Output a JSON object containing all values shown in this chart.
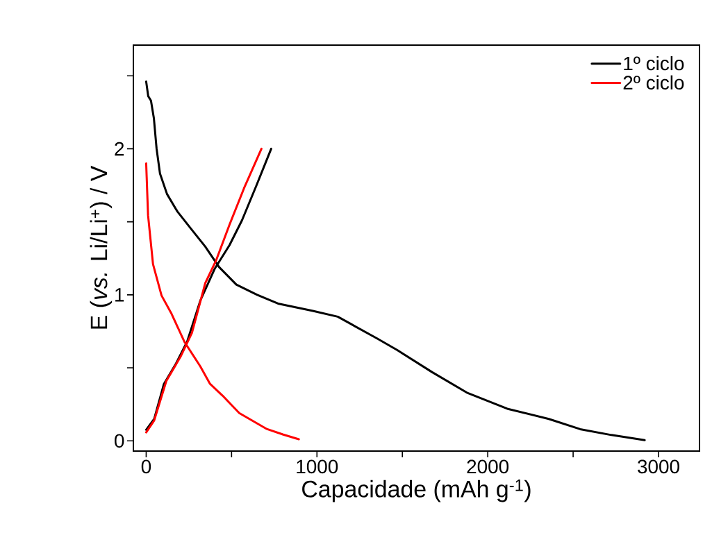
{
  "chart_data": {
    "type": "line",
    "xlabel": "Capacidade (mAh g$^{-1}$)",
    "ylabel": "E (*vs.* Li/Li$^{+}$) / V",
    "xlim": [
      -75,
      3240
    ],
    "ylim": [
      -0.07,
      2.71
    ],
    "xticks": [
      0,
      {
        "value": 500,
        "label": null
      },
      1000,
      {
        "value": 1500,
        "label": null
      },
      2000,
      {
        "value": 2500,
        "label": null
      },
      3000
    ],
    "yticks": [
      0,
      {
        "value": 0.5,
        "label": null
      },
      1,
      {
        "value": 1.5,
        "label": null
      },
      2,
      {
        "value": 2.5,
        "label": null
      }
    ],
    "legend": "top right",
    "line_style": "solid",
    "marker": "none",
    "series": [
      {
        "name": "1º ciclo",
        "color": "#000000",
        "x": [
          0,
          12,
          28,
          45,
          61,
          81,
          122,
          183,
          264,
          346,
          427,
          528,
          650,
          772,
          976,
          1122,
          1354,
          1472,
          1675,
          1878,
          2114,
          2358,
          2541,
          2724,
          2919,
          null,
          0,
          47,
          104,
          175,
          240,
          317,
          402,
          488,
          561,
          646,
          732
        ],
        "values": [
          2.46,
          2.36,
          2.33,
          2.21,
          2.0,
          1.83,
          1.69,
          1.57,
          1.45,
          1.33,
          1.19,
          1.07,
          1.0,
          0.94,
          0.89,
          0.85,
          0.7,
          0.62,
          0.47,
          0.33,
          0.22,
          0.15,
          0.08,
          0.04,
          0.005,
          null,
          0.076,
          0.15,
          0.39,
          0.53,
          0.68,
          0.96,
          1.18,
          1.34,
          1.51,
          1.75,
          2.0
        ]
      },
      {
        "name": "2º ciclo",
        "color": "#ff0000",
        "x": [
          0,
          11,
          40,
          90,
          146,
          225,
          317,
          374,
          447,
          545,
          703,
          803,
          894,
          null,
          0,
          47,
          118,
          203,
          268,
          346,
          411,
          488,
          573,
          675
        ],
        "values": [
          1.9,
          1.545,
          1.21,
          0.995,
          0.876,
          0.676,
          0.51,
          0.39,
          0.31,
          0.19,
          0.083,
          0.043,
          0.011,
          null,
          0.058,
          0.14,
          0.41,
          0.58,
          0.74,
          1.08,
          1.24,
          1.48,
          1.73,
          2.0
        ]
      }
    ]
  }
}
